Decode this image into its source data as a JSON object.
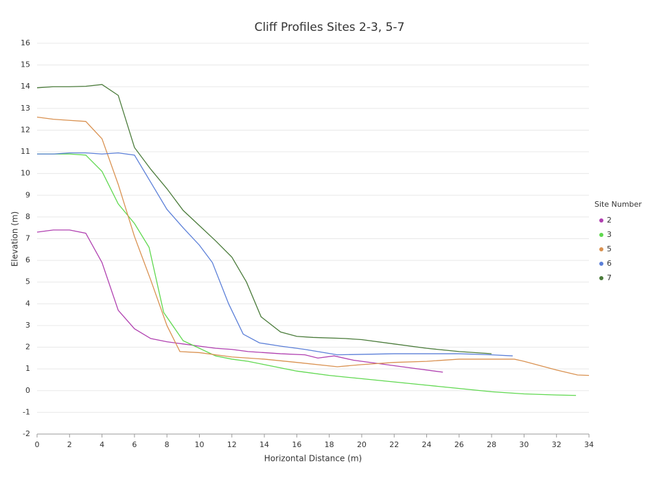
{
  "chart_data": {
    "type": "line",
    "title": "Cliff Profiles Sites 2-3, 5-7",
    "x_label": "Horizontal Distance (m)",
    "y_label": "Elevation (m)",
    "legend_title": "Site Number",
    "xlim": [
      0,
      34
    ],
    "xticks": [
      0,
      2,
      4,
      6,
      8,
      10,
      12,
      14,
      16,
      18,
      20,
      22,
      24,
      26,
      28,
      30,
      32,
      34
    ],
    "ylim": [
      -2,
      16
    ],
    "yticks": [
      -2,
      -1,
      0,
      1,
      2,
      3,
      4,
      5,
      6,
      7,
      8,
      9,
      10,
      11,
      12,
      13,
      14,
      15,
      16
    ],
    "grid": true,
    "legend": "right",
    "series": [
      {
        "name": "2",
        "color": "#b040b0",
        "x": [
          0,
          1,
          2,
          3,
          4,
          5,
          6,
          7,
          8,
          9,
          10,
          11,
          12,
          13,
          14,
          15,
          16.5,
          17.3,
          18.3,
          19.5,
          21,
          23,
          25
        ],
        "values": [
          7.3,
          7.4,
          7.4,
          7.25,
          5.9,
          3.7,
          2.85,
          2.4,
          2.25,
          2.15,
          2.05,
          1.95,
          1.9,
          1.8,
          1.75,
          1.7,
          1.65,
          1.5,
          1.6,
          1.4,
          1.25,
          1.05,
          0.85
        ]
      },
      {
        "name": "3",
        "color": "#5fd84f",
        "x": [
          0,
          1,
          2,
          3,
          4,
          5,
          6,
          6.9,
          7.8,
          9,
          10,
          11,
          12,
          13,
          14,
          16,
          18,
          20,
          22,
          24,
          26,
          28,
          30,
          32,
          33.2
        ],
        "values": [
          10.9,
          10.9,
          10.9,
          10.85,
          10.1,
          8.6,
          7.7,
          6.6,
          3.6,
          2.3,
          1.95,
          1.6,
          1.45,
          1.35,
          1.2,
          0.9,
          0.7,
          0.55,
          0.4,
          0.25,
          0.1,
          -0.05,
          -0.15,
          -0.2,
          -0.22
        ]
      },
      {
        "name": "5",
        "color": "#d99150",
        "x": [
          0,
          1,
          2,
          3,
          4,
          5,
          6,
          7,
          8,
          8.8,
          10,
          12,
          14,
          16,
          18.5,
          20,
          22,
          24,
          26,
          28,
          29.4,
          30,
          32,
          33.3,
          34
        ],
        "values": [
          12.6,
          12.5,
          12.45,
          12.4,
          11.6,
          9.5,
          7.1,
          5.1,
          3.0,
          1.8,
          1.75,
          1.55,
          1.45,
          1.3,
          1.1,
          1.2,
          1.3,
          1.35,
          1.45,
          1.45,
          1.45,
          1.35,
          0.95,
          0.72,
          0.7
        ]
      },
      {
        "name": "6",
        "color": "#5b7fd8",
        "x": [
          0,
          1,
          2,
          3,
          4,
          5,
          6,
          7,
          8,
          9,
          10,
          10.8,
          11.8,
          12.7,
          13.7,
          15,
          16.5,
          18.5,
          22,
          26,
          28,
          29.3
        ],
        "values": [
          10.9,
          10.9,
          10.95,
          10.95,
          10.9,
          10.95,
          10.85,
          9.6,
          8.35,
          7.5,
          6.7,
          5.9,
          4.0,
          2.6,
          2.2,
          2.05,
          1.9,
          1.65,
          1.7,
          1.7,
          1.65,
          1.6
        ]
      },
      {
        "name": "7",
        "color": "#4a7b3a",
        "x": [
          0,
          1,
          2,
          3,
          4,
          5,
          6,
          7,
          8,
          9,
          10,
          11,
          12,
          12.9,
          13.8,
          15,
          16,
          17,
          19,
          20,
          22,
          24,
          26,
          28
        ],
        "values": [
          13.95,
          14,
          14,
          14.02,
          14.1,
          13.6,
          11.2,
          10.2,
          9.3,
          8.3,
          7.6,
          6.9,
          6.15,
          5,
          3.4,
          2.7,
          2.5,
          2.45,
          2.4,
          2.35,
          2.15,
          1.95,
          1.8,
          1.7
        ]
      }
    ]
  }
}
